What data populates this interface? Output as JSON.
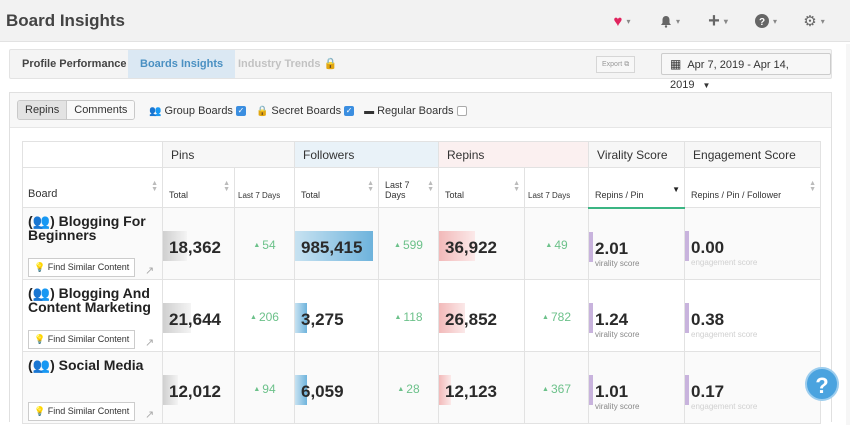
{
  "header": {
    "title": "Board Insights",
    "icons": [
      {
        "name": "heart-icon",
        "glyph": "♥",
        "color": "#e0245e"
      },
      {
        "name": "bell-icon",
        "glyph": "🔔"
      },
      {
        "name": "plus-icon",
        "glyph": "+"
      },
      {
        "name": "help-icon",
        "glyph": "?"
      },
      {
        "name": "gear-icon",
        "glyph": "⚙"
      }
    ]
  },
  "tabs": {
    "profile": "Profile Performance",
    "boards": "Boards Insights",
    "industry": "Industry Trends"
  },
  "toolbar": {
    "export_label": "Export",
    "date_range": "Apr 7, 2019 - Apr 14, 2019"
  },
  "filters": {
    "repins": "Repins",
    "comments": "Comments",
    "group_boards": "Group Boards",
    "secret_boards": "Secret Boards",
    "regular_boards": "Regular Boards"
  },
  "table": {
    "groups": {
      "pins": "Pins",
      "followers": "Followers",
      "repins": "Repins",
      "virality": "Virality Score",
      "engagement": "Engagement Score"
    },
    "columns": {
      "board": "Board",
      "total": "Total",
      "last7": "Last 7 Days",
      "last7_stacked_a": "Last 7",
      "last7_stacked_b": "Days",
      "repins_per_pin": "Repins / Pin",
      "repins_per_pin_per_follower": "Repins / Pin / Follower"
    },
    "find_label": "Find Similar Content",
    "virality_sub": "virality score",
    "engagement_sub": "engagement score",
    "rows": [
      {
        "board": "(👥) Blogging For Beginners",
        "pins": "18,362",
        "pins_7d": "54",
        "followers": "985,415",
        "followers_7d": "599",
        "repins": "36,922",
        "repins_7d": "49",
        "virality": "2.01",
        "engagement": "0.00"
      },
      {
        "board": "(👥) Blogging And Content Marketing",
        "pins": "21,644",
        "pins_7d": "206",
        "followers": "3,275",
        "followers_7d": "118",
        "repins": "26,852",
        "repins_7d": "782",
        "virality": "1.24",
        "engagement": "0.38"
      },
      {
        "board": "(👥) Social Media",
        "pins": "12,012",
        "pins_7d": "94",
        "followers": "6,059",
        "followers_7d": "28",
        "repins": "12,123",
        "repins_7d": "367",
        "virality": "1.01",
        "engagement": "0.17"
      }
    ]
  },
  "help_badge": "?"
}
